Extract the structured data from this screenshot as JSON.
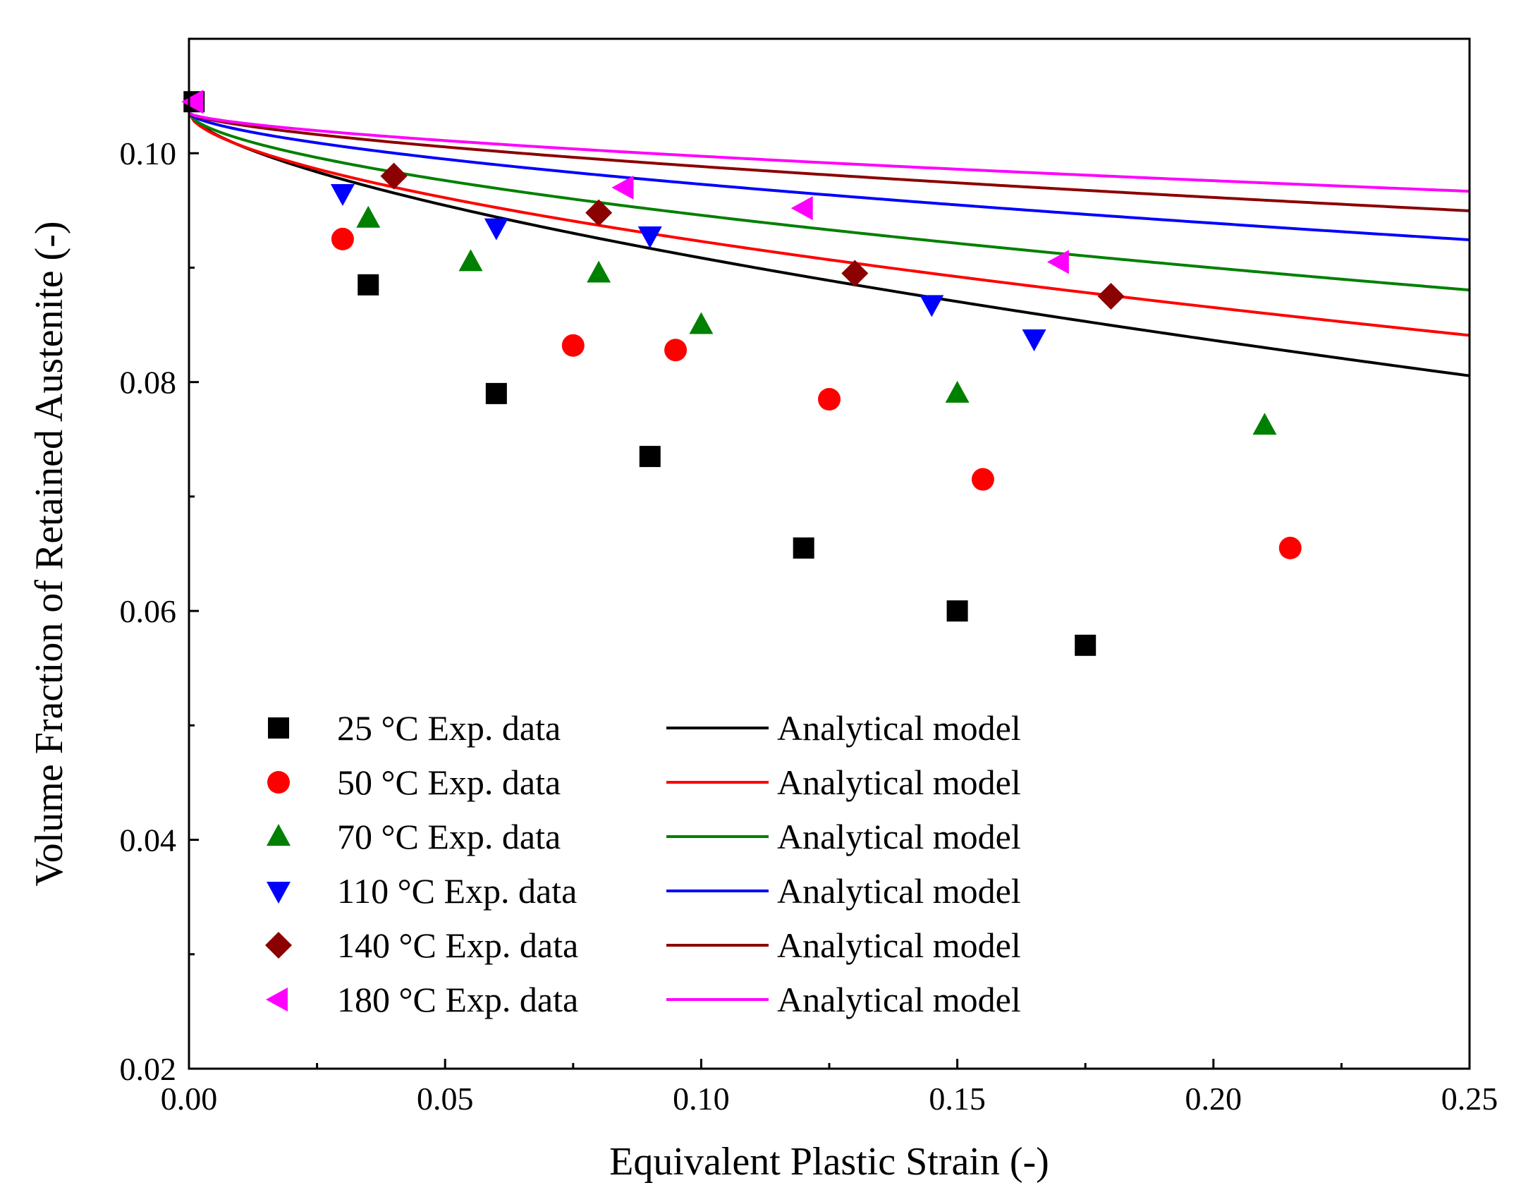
{
  "chart_data": {
    "type": "scatter",
    "xlabel": "Equivalent Plastic Strain (-)",
    "ylabel": "Volume Fraction of Retained Austenite (-)",
    "xlim": [
      0,
      0.25
    ],
    "ylim": [
      0.02,
      0.11
    ],
    "xticks": [
      "0.00",
      "0.05",
      "0.10",
      "0.15",
      "0.20",
      "0.25"
    ],
    "yticks": [
      "0.02",
      "0.04",
      "0.06",
      "0.08",
      "0.10"
    ],
    "grid": false,
    "legend_position": "bottom-left",
    "series": [
      {
        "name": "25 °C Exp. data",
        "model_name": "Analytical model",
        "color": "#000000",
        "marker": "square",
        "x": [
          0.001,
          0.035,
          0.06,
          0.09,
          0.12,
          0.15,
          0.175
        ],
        "y": [
          0.1045,
          0.0885,
          0.079,
          0.0735,
          0.0655,
          0.06,
          0.057
        ],
        "model": {
          "y0": 0.1035,
          "a": 0.0565,
          "n": 0.65
        }
      },
      {
        "name": "50 °C Exp. data",
        "model_name": "Analytical model",
        "color": "#ff0000",
        "marker": "circle",
        "x": [
          0.03,
          0.075,
          0.095,
          0.125,
          0.155,
          0.215
        ],
        "y": [
          0.0925,
          0.0832,
          0.0828,
          0.0785,
          0.0715,
          0.0655
        ],
        "model": {
          "y0": 0.1035,
          "a": 0.0446,
          "n": 0.6
        }
      },
      {
        "name": "70 °C Exp. data",
        "model_name": "Analytical model",
        "color": "#008000",
        "marker": "triangle-up",
        "x": [
          0.035,
          0.055,
          0.08,
          0.1,
          0.15,
          0.21
        ],
        "y": [
          0.0943,
          0.0905,
          0.0895,
          0.085,
          0.079,
          0.0762
        ],
        "model": {
          "y0": 0.1035,
          "a": 0.0355,
          "n": 0.6
        }
      },
      {
        "name": "110 °C Exp. data",
        "model_name": "Analytical model",
        "color": "#0000ff",
        "marker": "triangle-down",
        "x": [
          0.03,
          0.06,
          0.09,
          0.145,
          0.165
        ],
        "y": [
          0.0965,
          0.0935,
          0.0928,
          0.0868,
          0.0838
        ],
        "model": {
          "y0": 0.1035,
          "a": 0.0265,
          "n": 0.63
        }
      },
      {
        "name": "140 °C Exp. data",
        "model_name": "Analytical model",
        "color": "#8b0000",
        "marker": "diamond",
        "x": [
          0.04,
          0.08,
          0.13,
          0.18
        ],
        "y": [
          0.098,
          0.0948,
          0.0895,
          0.0875
        ],
        "model": {
          "y0": 0.1035,
          "a": 0.0213,
          "n": 0.66
        }
      },
      {
        "name": "180 °C Exp. data",
        "model_name": "Analytical model",
        "color": "#ff00ff",
        "marker": "triangle-left",
        "x": [
          0.001,
          0.085,
          0.12,
          0.17
        ],
        "y": [
          0.1045,
          0.097,
          0.0952,
          0.0905
        ],
        "model": {
          "y0": 0.1035,
          "a": 0.0168,
          "n": 0.65
        }
      }
    ]
  }
}
